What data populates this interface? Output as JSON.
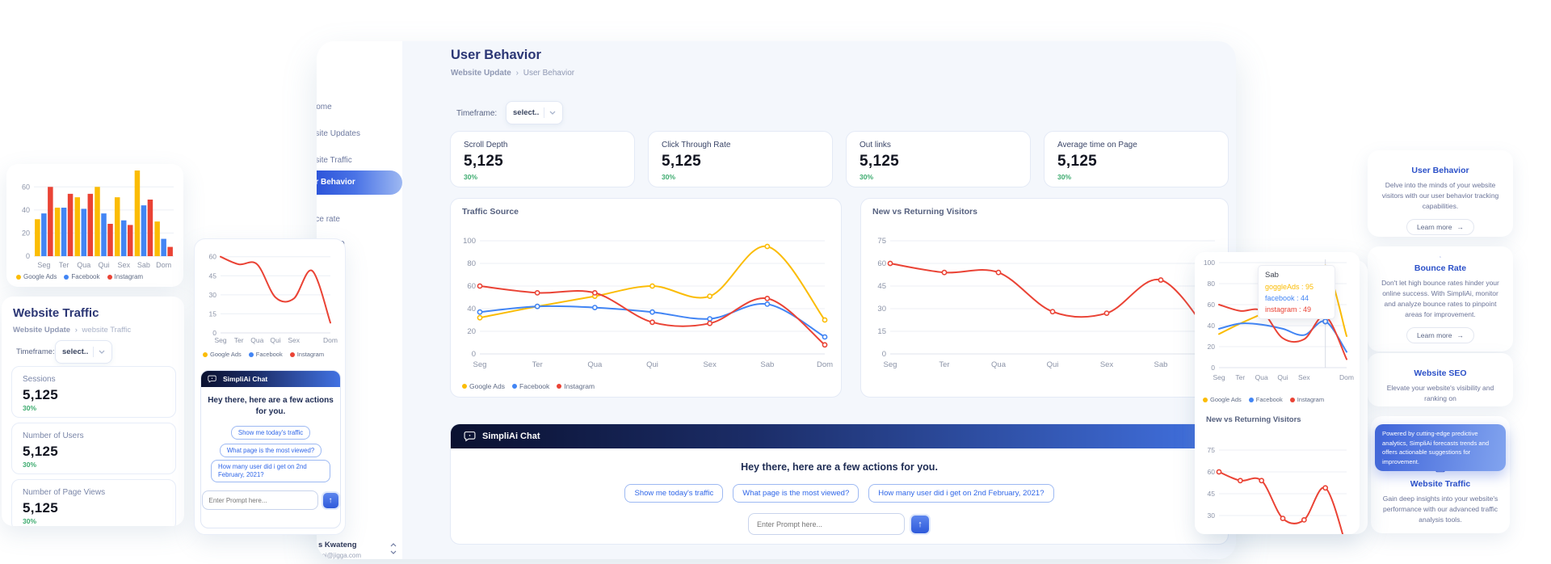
{
  "colors": {
    "google_ads": "#FBBC05",
    "facebook": "#4285F4",
    "instagram": "#EA4335",
    "positive_green": "#3cab6e",
    "accent_blue": "#2b50c8"
  },
  "common": {
    "learn_more": "Learn more",
    "arrow": "→",
    "send_arrow": "↑",
    "timeframe_label": "Timeframe:",
    "timeframe_value": "select.."
  },
  "chart_data": [
    {
      "id": "weekly-bar",
      "type": "bar",
      "title": "",
      "categories": [
        "Seg",
        "Ter",
        "Qua",
        "Qui",
        "Sex",
        "Sab",
        "Dom"
      ],
      "series": [
        {
          "name": "Google Ads",
          "color": "#FBBC05",
          "values": [
            32,
            42,
            51,
            60,
            51,
            95,
            30
          ]
        },
        {
          "name": "Facebook",
          "color": "#4285F4",
          "values": [
            37,
            42,
            41,
            37,
            31,
            44,
            15
          ]
        },
        {
          "name": "Instagram",
          "color": "#EA4335",
          "values": [
            60,
            54,
            54,
            28,
            27,
            49,
            8
          ]
        }
      ],
      "yticks": [
        0,
        20,
        40,
        60
      ],
      "ylim": [
        0,
        70
      ],
      "xlabel": "",
      "ylabel": "",
      "legend_position": "bottom"
    },
    {
      "id": "mobile-line",
      "type": "line",
      "title": "",
      "categories": [
        "Seg",
        "Ter",
        "Qua",
        "Qui",
        "Sex",
        "",
        "Dom"
      ],
      "series": [
        {
          "name": "Instagram",
          "color": "#EA4335",
          "values": [
            60,
            54,
            54,
            28,
            27,
            49,
            8
          ]
        }
      ],
      "yticks": [
        0,
        15,
        30,
        45,
        60
      ],
      "ylim": [
        0,
        63
      ],
      "markers": false,
      "xlabel": "",
      "ylabel": "",
      "legend_position": "bottom"
    },
    {
      "id": "traffic-source",
      "type": "line",
      "title": "Traffic Source",
      "categories": [
        "Seg",
        "Ter",
        "Qua",
        "Qui",
        "Sex",
        "Sab",
        "Dom"
      ],
      "series": [
        {
          "name": "Google Ads",
          "color": "#FBBC05",
          "values": [
            32,
            42,
            51,
            60,
            51,
            95,
            30
          ]
        },
        {
          "name": "Facebook",
          "color": "#4285F4",
          "values": [
            37,
            42,
            41,
            37,
            31,
            44,
            15
          ]
        },
        {
          "name": "Instagram",
          "color": "#EA4335",
          "values": [
            60,
            54,
            54,
            28,
            27,
            49,
            8
          ]
        }
      ],
      "yticks": [
        0,
        20,
        40,
        60,
        80,
        100
      ],
      "ylim": [
        0,
        100
      ],
      "markers": true,
      "xlabel": "",
      "ylabel": "",
      "legend_position": "bottom"
    },
    {
      "id": "new-vs-returning-main",
      "type": "line",
      "title": "New vs Returning Visitors",
      "categories": [
        "Seg",
        "Ter",
        "Qua",
        "Qui",
        "Sex",
        "Sab",
        "Dom"
      ],
      "series": [
        {
          "name": "Instagram",
          "color": "#EA4335",
          "values": [
            60,
            54,
            54,
            28,
            27,
            49,
            8
          ]
        }
      ],
      "yticks": [
        0,
        15,
        30,
        45,
        60,
        75
      ],
      "ylim": [
        0,
        75
      ],
      "markers": true,
      "xlabel": "",
      "ylabel": "",
      "legend_position": "none"
    },
    {
      "id": "tooltip-chart",
      "type": "line",
      "title": "",
      "categories": [
        "Seg",
        "Ter",
        "Qua",
        "Qui",
        "Sex",
        "",
        "Dom"
      ],
      "series": [
        {
          "name": "Google Ads",
          "color": "#FBBC05",
          "values": [
            32,
            42,
            51,
            60,
            51,
            95,
            30
          ]
        },
        {
          "name": "Facebook",
          "color": "#4285F4",
          "values": [
            37,
            42,
            41,
            37,
            31,
            44,
            15
          ]
        },
        {
          "name": "Instagram",
          "color": "#EA4335",
          "values": [
            60,
            54,
            54,
            28,
            27,
            49,
            8
          ]
        }
      ],
      "yticks": [
        0,
        20,
        40,
        60,
        80,
        100
      ],
      "ylim": [
        0,
        100
      ],
      "markers": false,
      "highlight_index": 5,
      "xlabel": "",
      "ylabel": "",
      "legend_position": "bottom"
    },
    {
      "id": "tooltip-small",
      "type": "line",
      "title": "New vs Returning Visitors",
      "categories": [
        "Seg",
        "Ter",
        "Qua",
        "Qui",
        "Sex",
        "Sab",
        "Dom"
      ],
      "series": [
        {
          "name": "Instagram",
          "color": "#EA4335",
          "values": [
            60,
            54,
            54,
            28,
            27,
            49,
            8
          ]
        }
      ],
      "yticks": [
        0,
        15,
        30,
        45,
        60,
        75
      ],
      "ylim": [
        0,
        75
      ],
      "markers": true,
      "xlabel": "",
      "ylabel": "",
      "legend_position": "none"
    }
  ],
  "traffic_card": {
    "title": "Website Traffic",
    "breadcrumb": {
      "root": "Website Update",
      "sep": "›",
      "current": "website Traffic"
    },
    "stats": [
      {
        "label": "Sessions",
        "value": "5,125",
        "delta": "30%"
      },
      {
        "label": "Number of Users",
        "value": "5,125",
        "delta": "30%"
      },
      {
        "label": "Number of Page Views",
        "value": "5,125",
        "delta": "30%"
      }
    ]
  },
  "mobile_card": {
    "chat": {
      "header": "SimpliAi Chat",
      "greeting": "Hey there, here are a few actions for you.",
      "actions": [
        "Show me today's traffic",
        "What page is the most viewed?",
        "How many user did i get on 2nd February, 2021?"
      ],
      "prompt_placeholder": "Enter Prompt here..."
    }
  },
  "window": {
    "sidebar": {
      "items": [
        "Home",
        "Website Updates",
        "Website Traffic",
        "User Behavior",
        "Bounce rate",
        "Website SEO"
      ],
      "active_index": 3,
      "user": {
        "name": "s Kwateng",
        "email": "hoi@jigga.com"
      }
    },
    "header": {
      "title": "User Behavior",
      "breadcrumb": {
        "root": "Website Update",
        "sep": "›",
        "current": "User Behavior"
      }
    },
    "stats": [
      {
        "label": "Scroll Depth",
        "value": "5,125",
        "delta": "30%"
      },
      {
        "label": "Click Through Rate",
        "value": "5,125",
        "delta": "30%"
      },
      {
        "label": "Out links",
        "value": "5,125",
        "delta": "30%"
      },
      {
        "label": "Average time on Page",
        "value": "5,125",
        "delta": "30%"
      }
    ],
    "chat": {
      "header": "SimpliAi Chat",
      "greeting": "Hey there, here are a few actions for you.",
      "actions": [
        "Show me today's traffic",
        "What page is the most viewed?",
        "How many user did i get on 2nd February, 2021?"
      ],
      "prompt_placeholder": "Enter Prompt here..."
    }
  },
  "tooltip_card": {
    "tooltip": {
      "title": "Sab",
      "rows": [
        {
          "label": "goggleAds : 95",
          "color": "#FBBC05"
        },
        {
          "label": "facebook : 44",
          "color": "#4285F4"
        },
        {
          "label": "instagram : 49",
          "color": "#EA4335"
        }
      ]
    }
  },
  "right_column": {
    "cards": [
      {
        "title": "User Behavior",
        "text": "Delve into the minds of your website visitors with our user behavior tracking capabilities.",
        "icon": "users-icon"
      },
      {
        "title": "Bounce Rate",
        "text": "Don't let high bounce rates hinder your online success. With SimpliAi, monitor and analyze bounce rates to pinpoint areas for improvement.",
        "icon": "cursor-icon"
      },
      {
        "title": "Website SEO",
        "text": "Elevate your website's visibility and ranking on",
        "icon": "seo-icon"
      },
      {
        "title": "Website Traffic",
        "text": "Gain deep insights into your website's performance with our advanced traffic analysis tools.",
        "icon": "browser-icon"
      }
    ],
    "banner": "Powered by cutting-edge predictive analytics, SimpliAi forecasts trends and offers actionable suggestions for improvement."
  }
}
